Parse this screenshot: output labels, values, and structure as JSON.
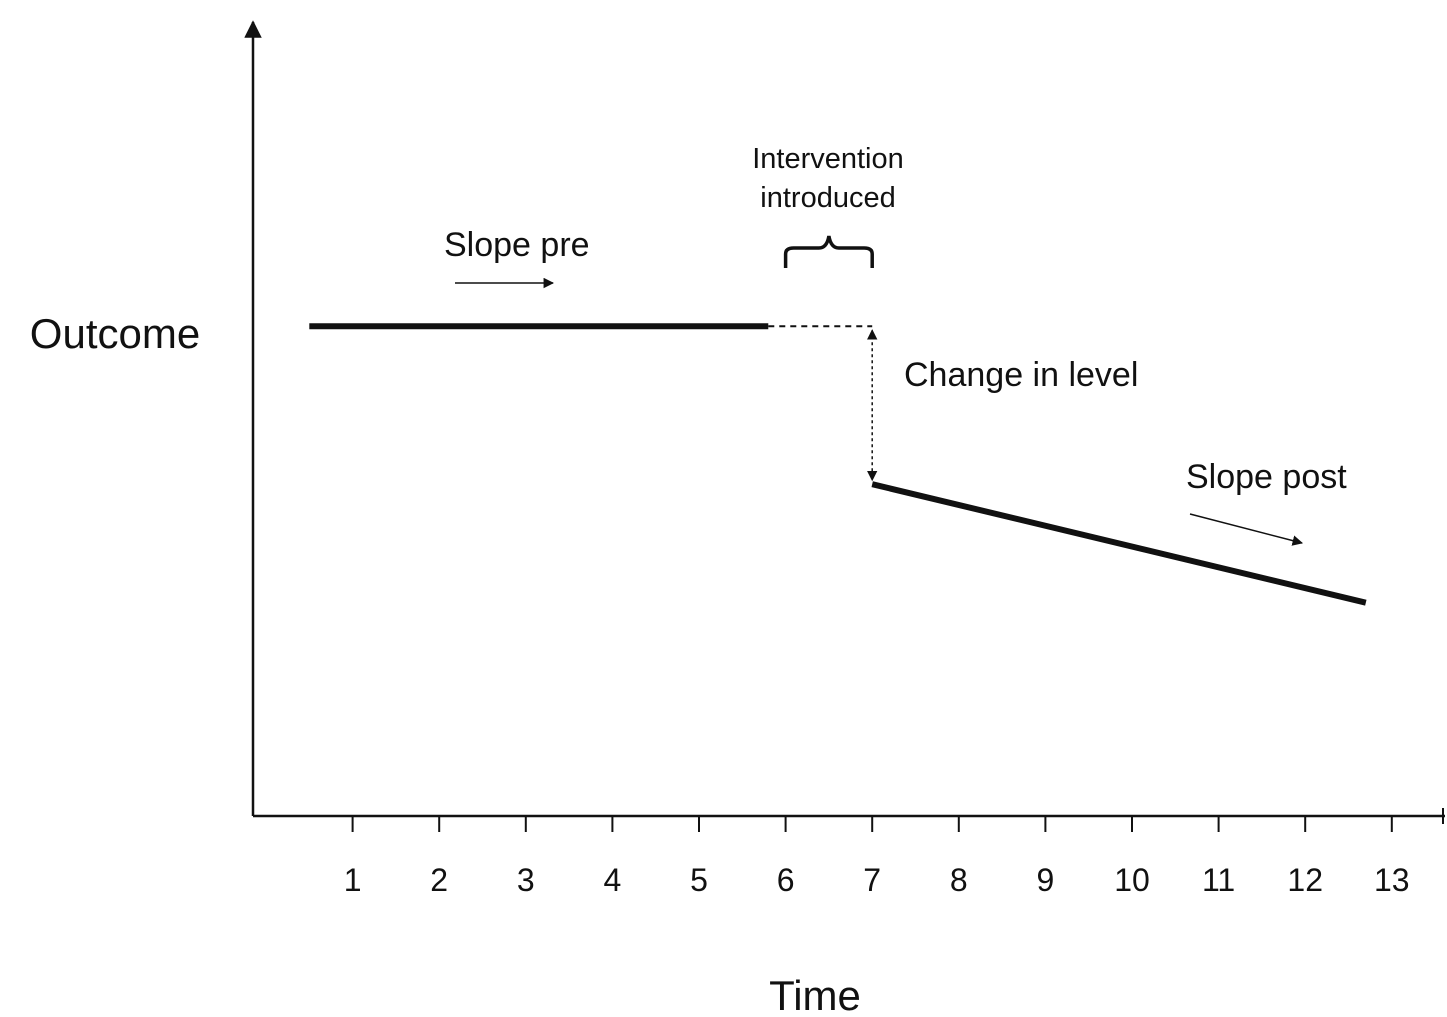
{
  "y_axis_label": "Outcome",
  "x_axis_label": "Time",
  "annotations": {
    "intervention_line1": "Intervention",
    "intervention_line2": "introduced",
    "slope_pre": "Slope pre",
    "slope_post": "Slope post",
    "change_in_level": "Change in level"
  },
  "chart_data": {
    "type": "line",
    "xlabel": "Time",
    "ylabel": "Outcome",
    "x_ticks": [
      1,
      2,
      3,
      4,
      5,
      6,
      7,
      8,
      9,
      10,
      11,
      12,
      13
    ],
    "xlim": [
      -0.2,
      13.6
    ],
    "intervention_span": [
      6,
      7
    ],
    "series": [
      {
        "segment": "pre",
        "x": [
          0.5,
          5.8
        ],
        "y": [
          0.62,
          0.62
        ],
        "style": "solid"
      },
      {
        "segment": "projection",
        "x": [
          5.8,
          7
        ],
        "y": [
          0.62,
          0.62
        ],
        "style": "dashed"
      },
      {
        "segment": "post",
        "x": [
          7,
          12.7
        ],
        "y": [
          0.42,
          0.27
        ],
        "style": "solid"
      }
    ],
    "change_in_level": {
      "x": 7,
      "from": 0.62,
      "to": 0.42
    },
    "grid": false,
    "legend": "none"
  }
}
